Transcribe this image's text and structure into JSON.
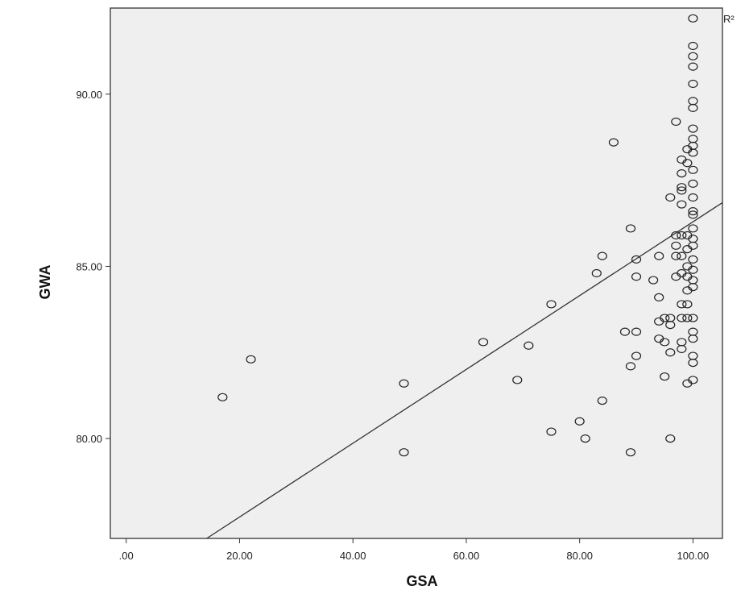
{
  "chart_data": {
    "type": "scatter",
    "title": "",
    "xlabel": "GSA",
    "ylabel": "GWA",
    "corner_label": "R²",
    "xlim": [
      -2.8,
      105.2
    ],
    "ylim": [
      77.1,
      92.5
    ],
    "xticks": [
      0,
      20,
      40,
      60,
      80,
      100
    ],
    "xtick_labels": [
      ".00",
      "20.00",
      "40.00",
      "60.00",
      "80.00",
      "100.00"
    ],
    "yticks": [
      80,
      85,
      90
    ],
    "ytick_labels": [
      "80.00",
      "85.00",
      "90.00"
    ],
    "grid": false,
    "legend": "none",
    "colors": {
      "plot_bg": "#efefef",
      "marker_stroke": "#222222",
      "line": "#333333"
    },
    "fit_line": {
      "x": [
        14.2,
        105.2
      ],
      "y": [
        77.1,
        86.85
      ]
    },
    "points": [
      [
        17,
        81.2
      ],
      [
        22,
        82.3
      ],
      [
        49,
        81.6
      ],
      [
        49,
        79.6
      ],
      [
        63,
        82.8
      ],
      [
        69,
        81.7
      ],
      [
        71,
        82.7
      ],
      [
        75,
        83.9
      ],
      [
        75,
        80.2
      ],
      [
        80,
        80.5
      ],
      [
        81,
        80.0
      ],
      [
        83,
        84.8
      ],
      [
        84,
        85.3
      ],
      [
        84,
        81.1
      ],
      [
        86,
        88.6
      ],
      [
        88,
        83.1
      ],
      [
        89,
        86.1
      ],
      [
        89,
        82.1
      ],
      [
        89,
        79.6
      ],
      [
        90,
        85.2
      ],
      [
        90,
        84.7
      ],
      [
        90,
        83.1
      ],
      [
        90,
        82.4
      ],
      [
        93,
        84.6
      ],
      [
        94,
        85.3
      ],
      [
        94,
        84.1
      ],
      [
        94,
        83.4
      ],
      [
        94,
        82.9
      ],
      [
        95,
        83.5
      ],
      [
        95,
        82.8
      ],
      [
        95,
        81.8
      ],
      [
        96,
        87.0
      ],
      [
        96,
        83.5
      ],
      [
        96,
        83.3
      ],
      [
        96,
        82.5
      ],
      [
        96,
        80.0
      ],
      [
        97,
        89.2
      ],
      [
        97,
        85.9
      ],
      [
        97,
        85.6
      ],
      [
        97,
        85.3
      ],
      [
        97,
        84.7
      ],
      [
        98,
        88.1
      ],
      [
        98,
        87.7
      ],
      [
        98,
        87.3
      ],
      [
        98,
        87.2
      ],
      [
        98,
        86.8
      ],
      [
        98,
        85.9
      ],
      [
        98,
        85.3
      ],
      [
        98,
        84.8
      ],
      [
        98,
        83.9
      ],
      [
        98,
        83.5
      ],
      [
        98,
        82.8
      ],
      [
        98,
        82.6
      ],
      [
        99,
        88.4
      ],
      [
        99,
        88.0
      ],
      [
        99,
        85.9
      ],
      [
        99,
        85.5
      ],
      [
        99,
        85.0
      ],
      [
        99,
        84.7
      ],
      [
        99,
        84.3
      ],
      [
        99,
        83.9
      ],
      [
        99,
        83.5
      ],
      [
        99,
        81.6
      ],
      [
        100,
        93.1
      ],
      [
        100,
        92.2
      ],
      [
        100,
        91.4
      ],
      [
        100,
        91.1
      ],
      [
        100,
        90.8
      ],
      [
        100,
        90.3
      ],
      [
        100,
        89.8
      ],
      [
        100,
        89.6
      ],
      [
        100,
        89.0
      ],
      [
        100,
        88.7
      ],
      [
        100,
        88.5
      ],
      [
        100,
        88.3
      ],
      [
        100,
        87.8
      ],
      [
        100,
        87.4
      ],
      [
        100,
        87.0
      ],
      [
        100,
        86.6
      ],
      [
        100,
        86.5
      ],
      [
        100,
        86.1
      ],
      [
        100,
        85.8
      ],
      [
        100,
        85.6
      ],
      [
        100,
        85.2
      ],
      [
        100,
        84.9
      ],
      [
        100,
        84.6
      ],
      [
        100,
        84.4
      ],
      [
        100,
        83.5
      ],
      [
        100,
        83.1
      ],
      [
        100,
        82.9
      ],
      [
        100,
        82.4
      ],
      [
        100,
        82.2
      ],
      [
        100,
        81.7
      ]
    ]
  }
}
